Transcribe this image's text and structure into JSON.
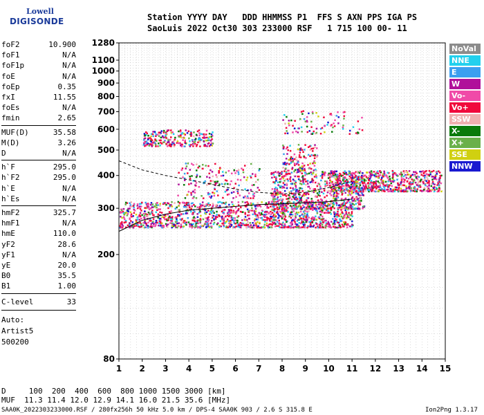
{
  "logo": {
    "line1": "Lowell",
    "line2": "DIGISONDE"
  },
  "header": {
    "row1": "Station YYYY DAY   DDD HHMMSS P1  FFS S AXN PPS IGA PS",
    "row2": "SaoLuis 2022 Oct30 303 233000 RSF   1 715 100 00- 11"
  },
  "params_a": [
    {
      "k": "foF2",
      "v": "10.900"
    },
    {
      "k": "foF1",
      "v": "N/A"
    },
    {
      "k": "foF1p",
      "v": "N/A"
    },
    {
      "k": "foE",
      "v": "N/A"
    },
    {
      "k": "foEp",
      "v": "0.35"
    },
    {
      "k": "fxI",
      "v": "11.55"
    },
    {
      "k": "foEs",
      "v": "N/A"
    },
    {
      "k": "fmin",
      "v": "2.65"
    }
  ],
  "params_b": [
    {
      "k": "MUF(D)",
      "v": "35.58"
    },
    {
      "k": "M(D)",
      "v": "3.26"
    },
    {
      "k": "D",
      "v": "N/A"
    }
  ],
  "params_c": [
    {
      "k": "h`F",
      "v": "295.0"
    },
    {
      "k": "h`F2",
      "v": "295.0"
    },
    {
      "k": "h`E",
      "v": "N/A"
    },
    {
      "k": "h`Es",
      "v": "N/A"
    }
  ],
  "params_d": [
    {
      "k": "hmF2",
      "v": "325.7"
    },
    {
      "k": "hmF1",
      "v": "N/A"
    },
    {
      "k": "hmE",
      "v": "110.0"
    },
    {
      "k": "yF2",
      "v": "28.6"
    },
    {
      "k": "yF1",
      "v": "N/A"
    },
    {
      "k": "yE",
      "v": "20.0"
    },
    {
      "k": "B0",
      "v": "35.5"
    },
    {
      "k": "B1",
      "v": "1.00"
    }
  ],
  "clevel": {
    "k": "C-level",
    "v": "33"
  },
  "auto": {
    "l1": "Auto:",
    "l2": "Artist5",
    "l3": "500200"
  },
  "legend": [
    {
      "label": "NoVal",
      "color": "#8c8c8c"
    },
    {
      "label": "NNE",
      "color": "#22d0ee"
    },
    {
      "label": "E",
      "color": "#3b9ff0"
    },
    {
      "label": "W",
      "color": "#b0109a"
    },
    {
      "label": "Vo-",
      "color": "#f04aa8"
    },
    {
      "label": "Vo+",
      "color": "#f00a3c"
    },
    {
      "label": "SSW",
      "color": "#f0b0b0"
    },
    {
      "label": "X-",
      "color": "#0a7a0a"
    },
    {
      "label": "X+",
      "color": "#6ab04a"
    },
    {
      "label": "SSE",
      "color": "#d0d010"
    },
    {
      "label": "NNW",
      "color": "#1a1ad0"
    }
  ],
  "bottom": {
    "row1": "D     100  200  400  600  800 1000 1500 3000 [km]",
    "row2": "MUF  11.3 11.4 12.0 12.9 14.1 16.0 21.5 35.6 [MHz]"
  },
  "footer": {
    "left": "SAA0K_2022303233000.RSF / 280fx256h 50 kHz 5.0 km / DPS-4 SAA0K 903 / 2.6 S 315.8 E",
    "right": "Ion2Png 1.3.17"
  },
  "chart_data": {
    "type": "scatter",
    "xlabel": "",
    "ylabel": "",
    "xlim": [
      1,
      15
    ],
    "ylim": [
      80,
      1280
    ],
    "y_scale": "log",
    "x_ticks": [
      1,
      2,
      3,
      4,
      5,
      6,
      7,
      8,
      9,
      10,
      11,
      12,
      13,
      14,
      15
    ],
    "y_ticks": [
      80,
      200,
      300,
      400,
      500,
      600,
      700,
      800,
      900,
      1000,
      1100,
      1280
    ],
    "grid": true,
    "legend_position": "right",
    "clusters": [
      {
        "fmin": 1.0,
        "fmax": 11.0,
        "hmin": 255,
        "hmax": 320,
        "n": 1400
      },
      {
        "fmin": 7.5,
        "fmax": 11.5,
        "hmin": 300,
        "hmax": 420,
        "n": 700
      },
      {
        "fmin": 10.0,
        "fmax": 14.8,
        "hmin": 350,
        "hmax": 420,
        "n": 700
      },
      {
        "fmin": 2.0,
        "fmax": 5.0,
        "hmin": 520,
        "hmax": 600,
        "n": 250
      },
      {
        "fmin": 8.0,
        "fmax": 9.5,
        "hmin": 420,
        "hmax": 530,
        "n": 120
      },
      {
        "fmin": 3.5,
        "fmax": 7.0,
        "hmin": 330,
        "hmax": 450,
        "n": 180
      },
      {
        "fmin": 8.0,
        "fmax": 11.5,
        "hmin": 580,
        "hmax": 710,
        "n": 90
      }
    ],
    "trace_upper": [
      [
        1.0,
        455
      ],
      [
        2,
        420
      ],
      [
        3,
        400
      ],
      [
        4,
        385
      ],
      [
        5,
        370
      ],
      [
        6,
        355
      ],
      [
        7,
        345
      ],
      [
        8,
        340
      ],
      [
        9,
        345
      ],
      [
        10,
        360
      ],
      [
        11,
        380
      ]
    ],
    "trace_lower": [
      [
        1.0,
        245
      ],
      [
        2,
        270
      ],
      [
        3,
        285
      ],
      [
        4,
        295
      ],
      [
        5,
        300
      ],
      [
        6,
        305
      ],
      [
        7,
        310
      ],
      [
        8,
        312
      ],
      [
        9,
        315
      ],
      [
        10,
        318
      ],
      [
        11,
        325
      ]
    ]
  }
}
